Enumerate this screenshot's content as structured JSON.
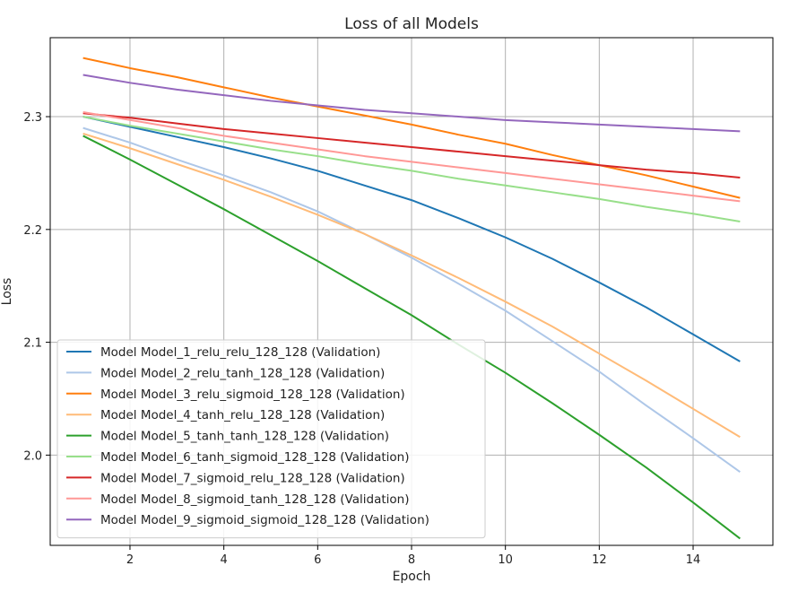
{
  "chart_data": {
    "type": "line",
    "title": "Loss of all Models",
    "xlabel": "Epoch",
    "ylabel": "Loss",
    "xlim": [
      0.3,
      15.7
    ],
    "ylim": [
      1.92,
      2.37
    ],
    "xticks": [
      2,
      4,
      6,
      8,
      10,
      12,
      14
    ],
    "yticks": [
      2.0,
      2.1,
      2.2,
      2.3
    ],
    "ytick_labels": [
      "2.0",
      "2.1",
      "2.2",
      "2.3"
    ],
    "grid": true,
    "legend_position": "lower-left",
    "x": [
      1,
      2,
      3,
      4,
      5,
      6,
      7,
      8,
      9,
      10,
      11,
      12,
      13,
      14,
      15
    ],
    "series": [
      {
        "name": "Model Model_1_relu_relu_128_128 (Validation)",
        "color": "#1f77b4",
        "values": [
          2.3,
          2.291,
          2.282,
          2.273,
          2.263,
          2.252,
          2.239,
          2.226,
          2.21,
          2.193,
          2.174,
          2.153,
          2.131,
          2.107,
          2.083
        ]
      },
      {
        "name": "Model Model_2_relu_tanh_128_128 (Validation)",
        "color": "#aec7e8",
        "values": [
          2.29,
          2.277,
          2.262,
          2.248,
          2.233,
          2.216,
          2.196,
          2.175,
          2.152,
          2.128,
          2.101,
          2.074,
          2.044,
          2.015,
          1.985
        ]
      },
      {
        "name": "Model Model_3_relu_sigmoid_128_128 (Validation)",
        "color": "#ff7f0e",
        "values": [
          2.352,
          2.343,
          2.335,
          2.326,
          2.317,
          2.309,
          2.301,
          2.293,
          2.284,
          2.276,
          2.266,
          2.257,
          2.248,
          2.238,
          2.228
        ]
      },
      {
        "name": "Model Model_4_tanh_relu_128_128 (Validation)",
        "color": "#ffbb78",
        "values": [
          2.285,
          2.272,
          2.258,
          2.244,
          2.229,
          2.213,
          2.196,
          2.177,
          2.157,
          2.136,
          2.114,
          2.09,
          2.066,
          2.041,
          2.016
        ]
      },
      {
        "name": "Model Model_5_tanh_tanh_128_128 (Validation)",
        "color": "#2ca02c",
        "values": [
          2.283,
          2.262,
          2.24,
          2.218,
          2.195,
          2.172,
          2.148,
          2.124,
          2.098,
          2.073,
          2.046,
          2.018,
          1.989,
          1.958,
          1.926
        ]
      },
      {
        "name": "Model Model_6_tanh_sigmoid_128_128 (Validation)",
        "color": "#98df8a",
        "values": [
          2.3,
          2.292,
          2.285,
          2.278,
          2.271,
          2.265,
          2.258,
          2.252,
          2.245,
          2.239,
          2.233,
          2.227,
          2.22,
          2.214,
          2.207
        ]
      },
      {
        "name": "Model Model_7_sigmoid_relu_128_128 (Validation)",
        "color": "#d62728",
        "values": [
          2.303,
          2.299,
          2.294,
          2.289,
          2.285,
          2.281,
          2.277,
          2.273,
          2.269,
          2.265,
          2.261,
          2.257,
          2.253,
          2.25,
          2.246
        ]
      },
      {
        "name": "Model Model_8_sigmoid_tanh_128_128 (Validation)",
        "color": "#ff9896",
        "values": [
          2.304,
          2.297,
          2.29,
          2.283,
          2.277,
          2.271,
          2.265,
          2.26,
          2.255,
          2.25,
          2.245,
          2.24,
          2.235,
          2.23,
          2.225
        ]
      },
      {
        "name": "Model Model_9_sigmoid_sigmoid_128_128 (Validation)",
        "color": "#9467bd",
        "values": [
          2.337,
          2.33,
          2.324,
          2.319,
          2.314,
          2.31,
          2.306,
          2.303,
          2.3,
          2.297,
          2.295,
          2.293,
          2.291,
          2.289,
          2.287
        ]
      }
    ]
  }
}
